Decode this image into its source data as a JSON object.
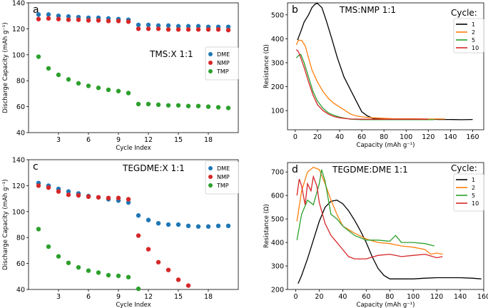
{
  "chart_data": [
    {
      "id": "a",
      "panel_label": "a",
      "type": "scatter",
      "annotation": "TMS:X 1:1",
      "xlabel": "Cycle Index",
      "ylabel": "Discharge Capacity (mAh g⁻¹)",
      "xlim": [
        0,
        21
      ],
      "ylim": [
        40,
        140
      ],
      "xticks": [
        3,
        6,
        9,
        12,
        15,
        18
      ],
      "yticks": [
        40,
        60,
        80,
        100,
        120,
        140
      ],
      "legend_position": "center-right",
      "series": [
        {
          "name": "DME",
          "color": "#1f77b4",
          "x": [
            1,
            2,
            3,
            4,
            5,
            6,
            7,
            8,
            9,
            10,
            11,
            12,
            13,
            14,
            15,
            16,
            17,
            18,
            19,
            20
          ],
          "y": [
            131,
            131,
            130,
            129.5,
            129,
            128.5,
            128.5,
            128,
            127.5,
            127,
            123,
            123,
            122.5,
            122.5,
            122,
            122,
            122,
            121.5,
            121.5,
            121.5
          ]
        },
        {
          "name": "NMP",
          "color": "#d62728",
          "x": [
            1,
            2,
            3,
            4,
            5,
            6,
            7,
            8,
            9,
            10,
            11,
            12,
            13,
            14,
            15,
            16,
            17,
            18,
            19,
            20
          ],
          "y": [
            127.5,
            128,
            127.5,
            127,
            127,
            126.5,
            126.5,
            126,
            126,
            125.5,
            120,
            120,
            120,
            119.5,
            119.5,
            119.5,
            119.5,
            119.5,
            119.5,
            119
          ]
        },
        {
          "name": "TMP",
          "color": "#2ca02c",
          "x": [
            1,
            2,
            3,
            4,
            5,
            6,
            7,
            8,
            9,
            10,
            11,
            12,
            13,
            14,
            15,
            16,
            17,
            18,
            19,
            20
          ],
          "y": [
            98.5,
            89.5,
            84.5,
            81,
            78,
            76,
            74.5,
            73,
            72,
            70.5,
            62,
            62,
            61.5,
            61,
            61,
            60.5,
            60.5,
            60,
            59.5,
            59
          ]
        }
      ]
    },
    {
      "id": "b",
      "panel_label": "b",
      "type": "line",
      "annotation": "TMS:NMP 1:1",
      "legend_title": "Cycle:",
      "legend_position": "top-right",
      "xlabel": "Capacity (mAh g⁻¹)",
      "ylabel": "Resistance (Ω)",
      "xlim": [
        -7,
        170
      ],
      "ylim": [
        20,
        550
      ],
      "xticks": [
        0,
        20,
        40,
        60,
        80,
        100,
        120,
        140,
        160
      ],
      "yticks": [
        100,
        200,
        300,
        400,
        500
      ],
      "series": [
        {
          "name": "1",
          "color": "#000000",
          "x": [
            2,
            5,
            8,
            12,
            15,
            18,
            20,
            24,
            28,
            33,
            38,
            44,
            50,
            55,
            60,
            65,
            70,
            80,
            90,
            100,
            110,
            120,
            130,
            140,
            150,
            160
          ],
          "y": [
            395,
            430,
            470,
            500,
            530,
            545,
            548,
            530,
            475,
            400,
            320,
            240,
            185,
            140,
            95,
            78,
            68,
            66,
            66,
            65,
            64,
            64,
            63,
            63,
            62,
            63
          ]
        },
        {
          "name": "2",
          "color": "#ff7f0e",
          "x": [
            1,
            3,
            6,
            9,
            12,
            15,
            20,
            25,
            30,
            35,
            40,
            45,
            50,
            55,
            60,
            65,
            70,
            80,
            90,
            100,
            110,
            120,
            130,
            135
          ],
          "y": [
            375,
            395,
            392,
            370,
            320,
            270,
            220,
            180,
            150,
            130,
            115,
            100,
            85,
            78,
            74,
            72,
            70,
            68,
            66,
            66,
            66,
            65,
            65,
            65
          ]
        },
        {
          "name": "5",
          "color": "#2ca02c",
          "x": [
            1,
            3,
            5,
            8,
            12,
            16,
            20,
            25,
            30,
            35,
            40,
            45,
            50,
            60,
            70,
            80,
            90,
            100,
            110,
            120,
            125
          ],
          "y": [
            320,
            330,
            335,
            300,
            240,
            180,
            140,
            110,
            90,
            80,
            73,
            68,
            64,
            62,
            62,
            62,
            62,
            62,
            62,
            62,
            62
          ]
        },
        {
          "name": "10",
          "color": "#d62728",
          "x": [
            1,
            3,
            5,
            8,
            12,
            16,
            20,
            25,
            30,
            35,
            40,
            45,
            50,
            60,
            70,
            80,
            90,
            100,
            110,
            120
          ],
          "y": [
            355,
            345,
            320,
            280,
            220,
            165,
            125,
            100,
            85,
            75,
            70,
            67,
            65,
            64,
            64,
            64,
            64,
            64,
            64,
            64
          ]
        }
      ]
    },
    {
      "id": "c",
      "panel_label": "c",
      "type": "scatter",
      "annotation": "TEGDME:X 1:1",
      "xlabel": "Cycle Index",
      "ylabel": "Discharge Capacity (mAh g⁻¹)",
      "xlim": [
        0,
        21
      ],
      "ylim": [
        40,
        140
      ],
      "xticks": [
        3,
        6,
        9,
        12,
        15,
        18
      ],
      "yticks": [
        40,
        60,
        80,
        100,
        120,
        140
      ],
      "legend_position": "top-right",
      "series": [
        {
          "name": "DME",
          "color": "#1f77b4",
          "x": [
            1,
            2,
            3,
            4,
            5,
            6,
            7,
            8,
            9,
            10,
            11,
            12,
            13,
            14,
            15,
            16,
            17,
            18,
            19,
            20
          ],
          "y": [
            122,
            120,
            117.5,
            115.5,
            114,
            112,
            111,
            109.5,
            108.5,
            107,
            97,
            93.5,
            91,
            90,
            90,
            89,
            88.5,
            88.5,
            89,
            89
          ]
        },
        {
          "name": "NMP",
          "color": "#d62728",
          "x": [
            1,
            2,
            3,
            4,
            5,
            6,
            7,
            8,
            9,
            10,
            11,
            12,
            13,
            14,
            15,
            16
          ],
          "y": [
            120,
            118.5,
            115.5,
            113,
            112.5,
            111.5,
            111,
            110.5,
            110.5,
            109.5,
            81.5,
            71,
            61,
            55,
            47.5,
            43
          ]
        },
        {
          "name": "TMP",
          "color": "#2ca02c",
          "x": [
            1,
            2,
            3,
            4,
            5,
            6,
            7,
            8,
            9,
            10,
            11
          ],
          "y": [
            86.5,
            73,
            65.5,
            60.5,
            57,
            54.5,
            53,
            51,
            50.5,
            49.5,
            40.5
          ]
        }
      ]
    },
    {
      "id": "d",
      "panel_label": "d",
      "type": "line",
      "annotation": "TEGDME:DME 1:1",
      "legend_title": "Cycle:",
      "legend_position": "top-right",
      "xlabel": "Capacity (mAh g⁻¹)",
      "ylabel": "Resistance (Ω)",
      "xlim": [
        -7,
        160
      ],
      "ylim": [
        200,
        740
      ],
      "xticks": [
        0,
        20,
        40,
        60,
        80,
        100,
        120,
        140,
        160
      ],
      "yticks": [
        200,
        300,
        400,
        500,
        600,
        700
      ],
      "series": [
        {
          "name": "1",
          "color": "#000000",
          "x": [
            2,
            5,
            10,
            15,
            20,
            25,
            30,
            35,
            40,
            45,
            50,
            55,
            60,
            65,
            70,
            75,
            80,
            85,
            90,
            95,
            100,
            110,
            120,
            130,
            140,
            150,
            158
          ],
          "y": [
            225,
            260,
            330,
            410,
            490,
            550,
            575,
            580,
            565,
            535,
            495,
            450,
            400,
            340,
            290,
            260,
            245,
            245,
            245,
            245,
            245,
            248,
            250,
            250,
            250,
            248,
            245
          ]
        },
        {
          "name": "2",
          "color": "#ff7f0e",
          "x": [
            1,
            5,
            10,
            15,
            20,
            25,
            30,
            35,
            40,
            50,
            60,
            70,
            80,
            90,
            100,
            110,
            115,
            120,
            125
          ],
          "y": [
            490,
            620,
            700,
            720,
            710,
            650,
            580,
            520,
            470,
            440,
            415,
            400,
            395,
            385,
            380,
            370,
            350,
            355,
            350
          ]
        },
        {
          "name": "5",
          "color": "#2ca02c",
          "x": [
            1,
            5,
            10,
            15,
            20,
            22,
            25,
            30,
            35,
            40,
            50,
            60,
            70,
            80,
            85,
            90,
            100,
            110,
            118
          ],
          "y": [
            410,
            520,
            580,
            560,
            650,
            710,
            660,
            520,
            500,
            470,
            430,
            410,
            410,
            405,
            430,
            400,
            400,
            395,
            385
          ]
        },
        {
          "name": "10",
          "color": "#d62728",
          "x": [
            1,
            3,
            5,
            8,
            10,
            13,
            15,
            18,
            20,
            25,
            30,
            35,
            40,
            45,
            50,
            60,
            70,
            80,
            90,
            100,
            110,
            120,
            125
          ],
          "y": [
            600,
            670,
            640,
            560,
            650,
            620,
            680,
            640,
            570,
            480,
            430,
            400,
            370,
            340,
            330,
            330,
            345,
            350,
            340,
            345,
            350,
            335,
            340
          ]
        }
      ]
    }
  ]
}
